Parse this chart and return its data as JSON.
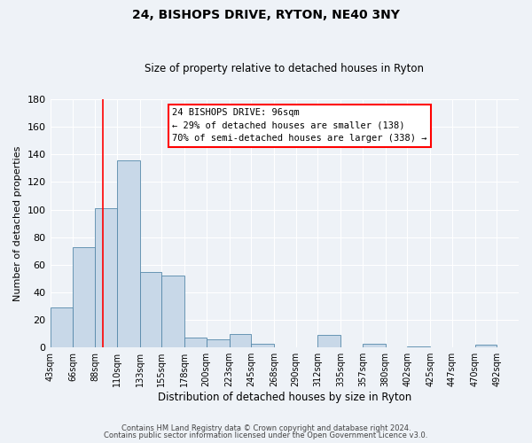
{
  "title": "24, BISHOPS DRIVE, RYTON, NE40 3NY",
  "subtitle": "Size of property relative to detached houses in Ryton",
  "xlabel": "Distribution of detached houses by size in Ryton",
  "ylabel": "Number of detached properties",
  "footer_line1": "Contains HM Land Registry data © Crown copyright and database right 2024.",
  "footer_line2": "Contains public sector information licensed under the Open Government Licence v3.0.",
  "bin_labels": [
    "43sqm",
    "66sqm",
    "88sqm",
    "110sqm",
    "133sqm",
    "155sqm",
    "178sqm",
    "200sqm",
    "223sqm",
    "245sqm",
    "268sqm",
    "290sqm",
    "312sqm",
    "335sqm",
    "357sqm",
    "380sqm",
    "402sqm",
    "425sqm",
    "447sqm",
    "470sqm",
    "492sqm"
  ],
  "bar_values": [
    29,
    73,
    101,
    136,
    55,
    52,
    7,
    6,
    10,
    3,
    0,
    0,
    9,
    0,
    3,
    0,
    1,
    0,
    0,
    2,
    0
  ],
  "bar_color": "#c8d8e8",
  "bar_edge_color": "#5588aa",
  "ylim": [
    0,
    180
  ],
  "yticks": [
    0,
    20,
    40,
    60,
    80,
    100,
    120,
    140,
    160,
    180
  ],
  "red_line_x": 96,
  "annotation_title": "24 BISHOPS DRIVE: 96sqm",
  "annotation_line1": "← 29% of detached houses are smaller (138)",
  "annotation_line2": "70% of semi-detached houses are larger (338) →",
  "bin_edges": [
    43,
    66,
    88,
    110,
    133,
    155,
    178,
    200,
    223,
    245,
    268,
    290,
    312,
    335,
    357,
    380,
    402,
    425,
    447,
    470,
    492
  ],
  "background_color": "#eef2f7",
  "grid_color": "#ffffff"
}
